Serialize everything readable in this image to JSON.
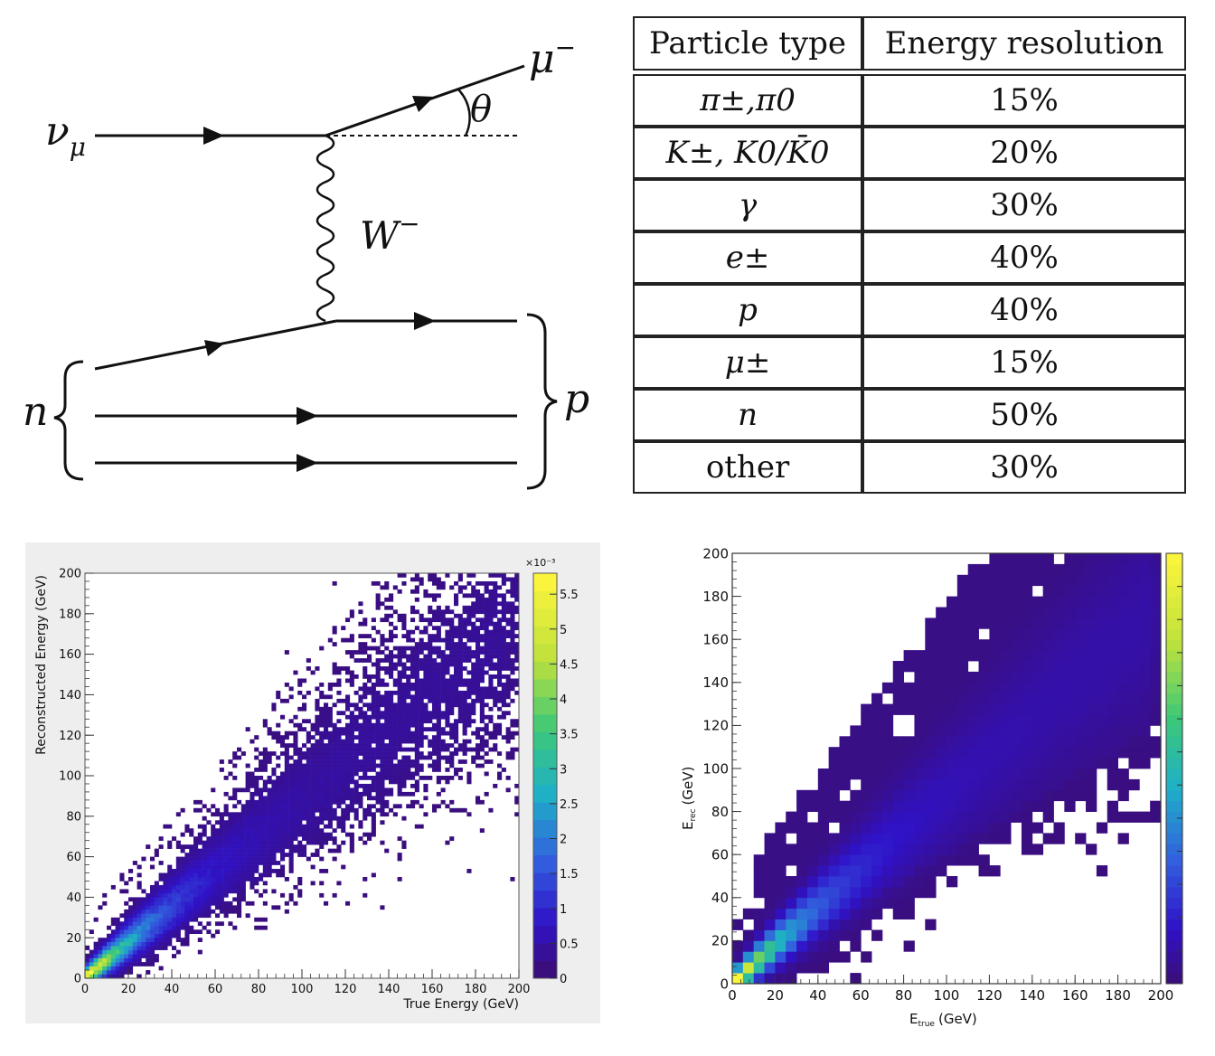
{
  "feynman": {
    "incoming_neutrino": "ν",
    "incoming_neutrino_sub": "μ",
    "outgoing_muon": "μ",
    "outgoing_muon_sup": "−",
    "angle": "θ",
    "boson": "W",
    "boson_sup": "−",
    "initial_nucleon": "n",
    "final_nucleon": "p"
  },
  "table": {
    "headers": [
      "Particle type",
      "Energy resolution"
    ],
    "rows": [
      {
        "particle": "π±,π0",
        "resolution": "15%"
      },
      {
        "particle": "K±, K0/K̄0",
        "resolution": "20%"
      },
      {
        "particle": "γ",
        "resolution": "30%"
      },
      {
        "particle": "e±",
        "resolution": "40%"
      },
      {
        "particle": "p",
        "resolution": "40%"
      },
      {
        "particle": "μ±",
        "resolution": "15%"
      },
      {
        "particle": "n",
        "resolution": "50%"
      },
      {
        "particle": "other",
        "resolution": "30%"
      }
    ]
  },
  "chart_data": [
    {
      "type": "heatmap",
      "title": "",
      "xlabel": "True Energy (GeV)",
      "ylabel": "Reconstructed Energy (GeV)",
      "xlim": [
        0,
        200
      ],
      "ylim": [
        0,
        200
      ],
      "x_ticks": [
        0,
        20,
        40,
        60,
        80,
        100,
        120,
        140,
        160,
        180,
        200
      ],
      "y_ticks": [
        0,
        20,
        40,
        60,
        80,
        100,
        120,
        140,
        160,
        180,
        200
      ],
      "colorbar": {
        "multiplier": "×10⁻³",
        "ticks": [
          "0",
          "0.5",
          "1",
          "1.5",
          "2",
          "2.5",
          "3",
          "3.5",
          "4",
          "4.5",
          "5",
          "5.5"
        ],
        "range": [
          0,
          5.8
        ]
      }
    },
    {
      "type": "heatmap",
      "title": "",
      "xlabel": "E",
      "xlabel_sub": "true",
      "xlabel_unit": "(GeV)",
      "ylabel": "E",
      "ylabel_sub": "rec",
      "ylabel_unit": "(GeV)",
      "xlim": [
        0,
        200
      ],
      "ylim": [
        0,
        200
      ],
      "x_ticks": [
        0,
        20,
        40,
        60,
        80,
        100,
        120,
        140,
        160,
        180,
        200
      ],
      "y_ticks": [
        0,
        20,
        40,
        60,
        80,
        100,
        120,
        140,
        160,
        180,
        200
      ],
      "colorbar": {
        "ticks": [],
        "range": [
          0,
          1
        ]
      }
    }
  ]
}
